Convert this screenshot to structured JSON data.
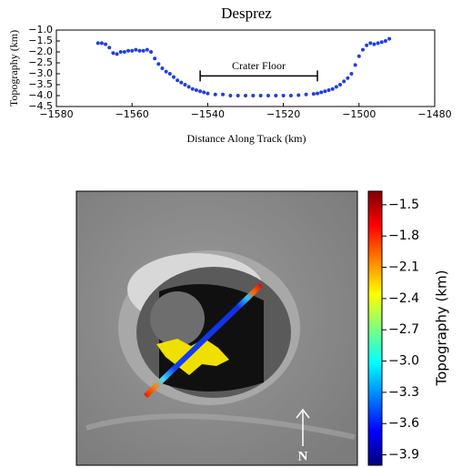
{
  "chart_data": [
    {
      "type": "scatter",
      "title": "Desprez",
      "xlabel": "Distance Along Track (km)",
      "ylabel": "Topography (km)",
      "color": "#1f3fe0",
      "x": [
        -1569,
        -1568,
        -1567,
        -1566,
        -1565,
        -1564,
        -1563,
        -1562,
        -1561,
        -1560,
        -1559,
        -1558,
        -1557,
        -1556,
        -1555,
        -1554,
        -1553,
        -1552,
        -1551,
        -1550,
        -1549,
        -1548,
        -1547,
        -1546,
        -1545,
        -1544,
        -1543,
        -1542,
        -1541,
        -1540,
        -1538,
        -1536,
        -1534,
        -1532,
        -1530,
        -1528,
        -1526,
        -1524,
        -1522,
        -1520,
        -1518,
        -1516,
        -1514,
        -1512,
        -1511,
        -1510,
        -1509,
        -1508,
        -1507,
        -1506,
        -1505,
        -1504,
        -1503,
        -1502,
        -1501,
        -1500,
        -1499,
        -1498,
        -1497,
        -1496,
        -1495,
        -1494,
        -1493,
        -1492
      ],
      "y": [
        -1.6,
        -1.6,
        -1.65,
        -1.8,
        -2.05,
        -2.1,
        -2.0,
        -2.0,
        -1.95,
        -1.95,
        -1.9,
        -1.95,
        -1.95,
        -1.9,
        -2.0,
        -2.3,
        -2.55,
        -2.75,
        -2.9,
        -3.0,
        -3.15,
        -3.3,
        -3.4,
        -3.5,
        -3.6,
        -3.7,
        -3.75,
        -3.8,
        -3.85,
        -3.9,
        -3.95,
        -3.95,
        -4.0,
        -4.0,
        -4.0,
        -4.0,
        -4.0,
        -4.0,
        -4.0,
        -4.0,
        -4.0,
        -3.98,
        -3.95,
        -3.92,
        -3.9,
        -3.85,
        -3.8,
        -3.75,
        -3.7,
        -3.6,
        -3.5,
        -3.35,
        -3.2,
        -3.0,
        -2.6,
        -2.2,
        -1.9,
        -1.7,
        -1.6,
        -1.65,
        -1.6,
        -1.55,
        -1.5,
        -1.4
      ],
      "xlim": [
        -1580,
        -1480
      ],
      "xticks": [
        {
          "value": -1580,
          "label": "−1580"
        },
        {
          "value": -1560,
          "label": "−1560"
        },
        {
          "value": -1540,
          "label": "−1540"
        },
        {
          "value": -1520,
          "label": "−1520"
        },
        {
          "value": -1500,
          "label": "−1500"
        },
        {
          "value": -1480,
          "label": "−1480"
        }
      ],
      "ylim": [
        -4.5,
        -1.0
      ],
      "yticks": [
        {
          "value": -1.0,
          "label": "−1.0"
        },
        {
          "value": -1.5,
          "label": "−1.5"
        },
        {
          "value": -2.0,
          "label": "−2.0"
        },
        {
          "value": -2.5,
          "label": "−2.5"
        },
        {
          "value": -3.0,
          "label": "−3.0"
        },
        {
          "value": -3.5,
          "label": "−3.5"
        },
        {
          "value": -4.0,
          "label": "−4.0"
        },
        {
          "value": -4.5,
          "label": "−4.5"
        }
      ],
      "annotations": [
        {
          "text": "Crater Floor",
          "x": [
            -1542,
            -1511
          ],
          "y": -3.1
        }
      ]
    },
    {
      "type": "image",
      "north_label": "N",
      "colorbar_label": "Topography (km)",
      "clim": [
        -4.0,
        -1.37
      ],
      "cticks": [
        {
          "value": -1.5,
          "label": "−1.5"
        },
        {
          "value": -1.8,
          "label": "−1.8"
        },
        {
          "value": -2.1,
          "label": "−2.1"
        },
        {
          "value": -2.4,
          "label": "−2.4"
        },
        {
          "value": -2.7,
          "label": "−2.7"
        },
        {
          "value": -3.0,
          "label": "−3.0"
        },
        {
          "value": -3.3,
          "label": "−3.3"
        },
        {
          "value": -3.6,
          "label": "−3.6"
        },
        {
          "value": -3.9,
          "label": "−3.9"
        }
      ]
    }
  ]
}
